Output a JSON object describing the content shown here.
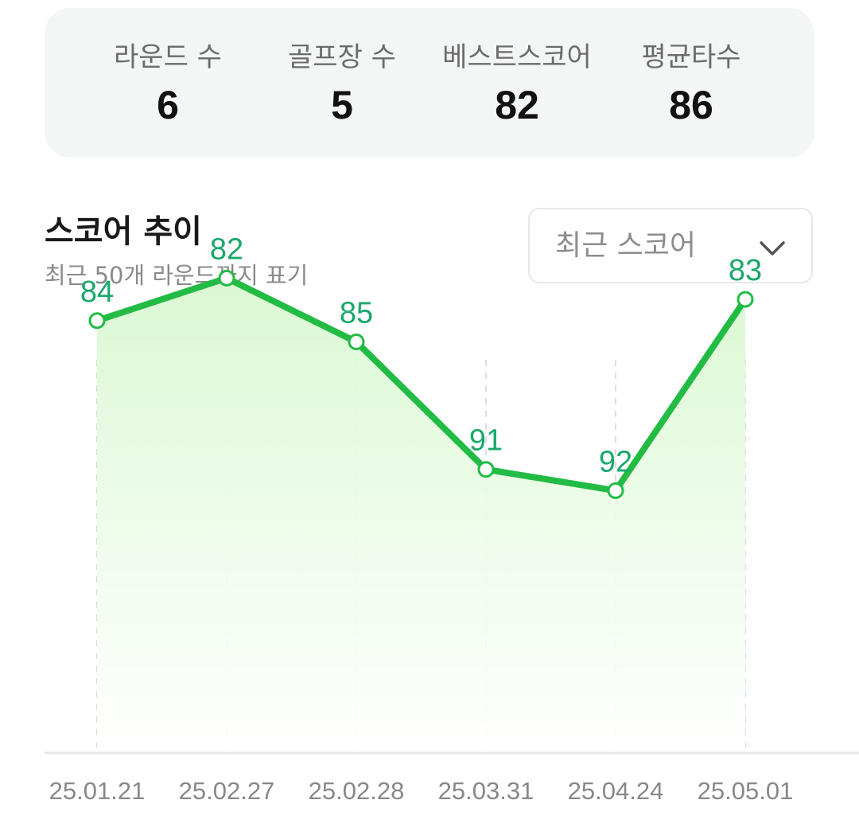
{
  "stats": [
    {
      "label": "라운드 수",
      "value": "6"
    },
    {
      "label": "골프장 수",
      "value": "5"
    },
    {
      "label": "베스트스코어",
      "value": "82"
    },
    {
      "label": "평균타수",
      "value": "86"
    }
  ],
  "section": {
    "title": "스코어 추이",
    "subtitle": "최근 50개 라운드까지 표기"
  },
  "dropdown": {
    "selected": "최근 스코어",
    "icon": "chevron-down-icon"
  },
  "colors": {
    "line": "#22bb44",
    "label": "#1aa86a",
    "fill_top": "#d8f8d0",
    "grid": "#dddddd",
    "axis": "#e6e6e6",
    "tick": "#888888"
  },
  "chart_data": {
    "type": "line",
    "x": [
      "25.01.21",
      "25.02.27",
      "25.02.28",
      "25.03.31",
      "25.04.24",
      "25.05.01"
    ],
    "values": [
      84,
      82,
      85,
      91,
      92,
      83
    ],
    "data_labels": [
      "84",
      "82",
      "85",
      "91",
      "92",
      "83"
    ],
    "y_inverted": true,
    "ylim": [
      80,
      96
    ],
    "grid": "vertical-dashed",
    "area_fill": true
  }
}
